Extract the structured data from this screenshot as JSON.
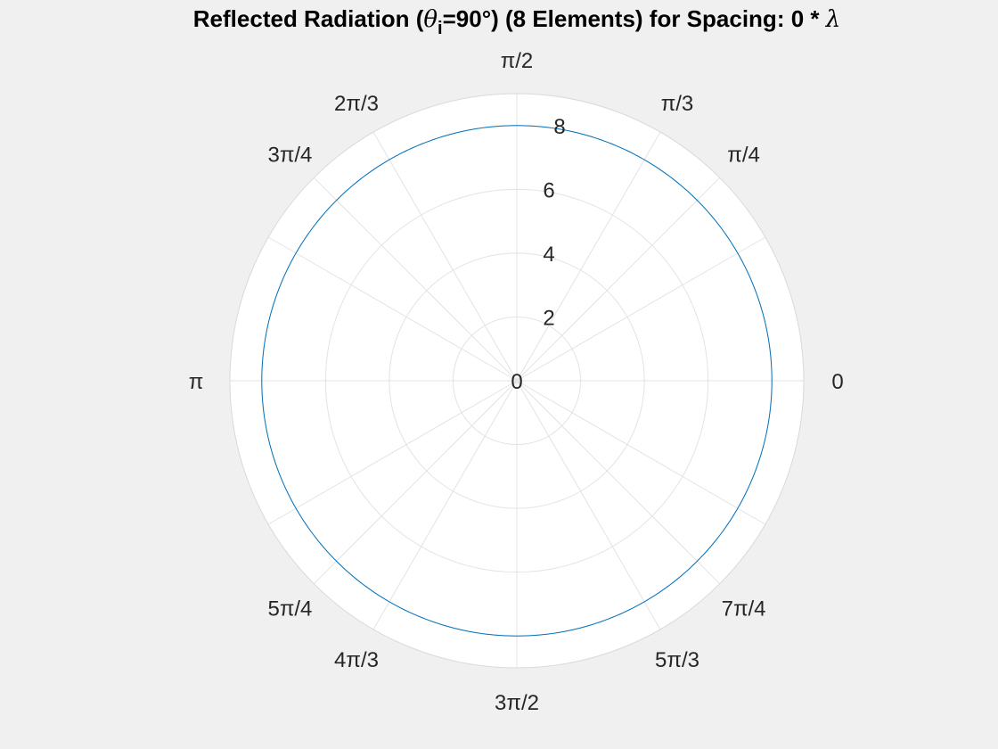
{
  "chart_data": {
    "type": "line",
    "projection": "polar",
    "title": {
      "prefix": "Reflected Radiation (",
      "theta_symbol": "θ",
      "subscript": "i",
      "suffix": "=90°) (8 Elements) for Spacing: 0 * ",
      "lambda_symbol": "λ"
    },
    "theta_tick_labels": [
      {
        "angle_deg": 0,
        "label": "0"
      },
      {
        "angle_deg": 45,
        "label": "π/4"
      },
      {
        "angle_deg": 60,
        "label": "π/3"
      },
      {
        "angle_deg": 90,
        "label": "π/2"
      },
      {
        "angle_deg": 120,
        "label": "2π/3"
      },
      {
        "angle_deg": 135,
        "label": "3π/4"
      },
      {
        "angle_deg": 180,
        "label": "π"
      },
      {
        "angle_deg": 225,
        "label": "5π/4"
      },
      {
        "angle_deg": 240,
        "label": "4π/3"
      },
      {
        "angle_deg": 270,
        "label": "3π/2"
      },
      {
        "angle_deg": 300,
        "label": "5π/3"
      },
      {
        "angle_deg": 315,
        "label": "7π/4"
      }
    ],
    "r_ticks": [
      0,
      2,
      4,
      6,
      8
    ],
    "r_tick_labels": [
      "0",
      "2",
      "4",
      "6",
      "8"
    ],
    "rlim": [
      0,
      9
    ],
    "grid": true,
    "series": [
      {
        "color": "#0072bd",
        "theta_deg": [
          0,
          360
        ],
        "r_constant": 8
      }
    ]
  },
  "colors": {
    "background": "#f0f0f0",
    "axes_background": "#ffffff",
    "grid": "#e3e3e3",
    "axis_edge": "#d9d9d9",
    "series": "#0072bd",
    "text": "#262626"
  }
}
